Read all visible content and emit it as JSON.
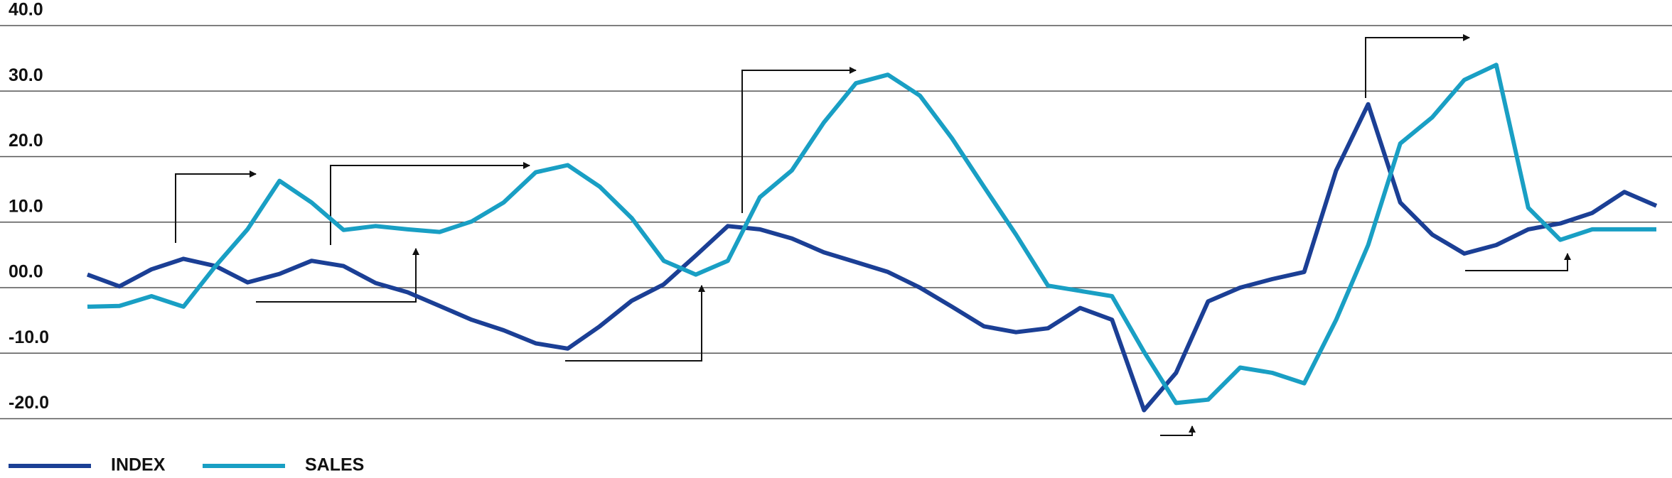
{
  "chart_data": {
    "type": "line",
    "categories": [
      null,
      null,
      null,
      null,
      null,
      null,
      null,
      null,
      null,
      null,
      null,
      null,
      null,
      null,
      null,
      null,
      null,
      null,
      null,
      null,
      null,
      null,
      null,
      null,
      null,
      null,
      null,
      null,
      null,
      null,
      null,
      null,
      null,
      null,
      null,
      null,
      null,
      null,
      null,
      null,
      null,
      null,
      null,
      null,
      null,
      null,
      null,
      null,
      null,
      null
    ],
    "series": [
      {
        "name": "INDEX",
        "color": "#1b3f95",
        "values": [
          2.0,
          0.2,
          2.8,
          4.4,
          3.3,
          0.8,
          2.1,
          4.1,
          3.3,
          0.7,
          -0.7,
          -2.8,
          -4.9,
          -6.5,
          -8.5,
          -9.3,
          -5.9,
          -2.0,
          0.5,
          4.9,
          9.4,
          8.9,
          7.5,
          5.4,
          3.9,
          2.4,
          0,
          -2.9,
          -5.9,
          -6.8,
          -6.2,
          -3.1,
          -4.9,
          -18.7,
          -13.0,
          -2.1,
          0,
          1.3,
          2.4,
          17.9,
          28.0,
          13.0,
          8.1,
          5.2,
          6.5,
          8.9,
          9.8,
          11.4,
          14.6,
          12.5
        ]
      },
      {
        "name": "SALES",
        "color": "#199fc4",
        "values": [
          -2.9,
          -2.8,
          -1.3,
          -2.9,
          3.3,
          8.9,
          16.3,
          13.0,
          8.8,
          9.4,
          8.9,
          8.5,
          10.1,
          13.0,
          17.6,
          18.7,
          15.4,
          10.6,
          4.1,
          2.0,
          4.1,
          13.8,
          17.9,
          25.2,
          31.2,
          32.5,
          29.3,
          22.8,
          15.4,
          8.1,
          0.3,
          -0.5,
          -1.3,
          -9.8,
          -17.6,
          -17.1,
          -12.2,
          -13.0,
          -14.6,
          -4.9,
          6.5,
          22.0,
          26.0,
          31.7,
          34.0,
          12.2,
          7.3,
          8.9,
          8.9,
          8.9
        ]
      }
    ],
    "ylim": [
      -23,
      42
    ],
    "yticks": [
      {
        "value": 40,
        "label": "40.0"
      },
      {
        "value": 30,
        "label": "30.0"
      },
      {
        "value": 20,
        "label": "20.0"
      },
      {
        "value": 10,
        "label": "10.0"
      },
      {
        "value": 0,
        "label": "00.0"
      },
      {
        "value": -10,
        "label": "-10.0"
      },
      {
        "value": -20,
        "label": "-20.0"
      }
    ],
    "grid": true
  }
}
